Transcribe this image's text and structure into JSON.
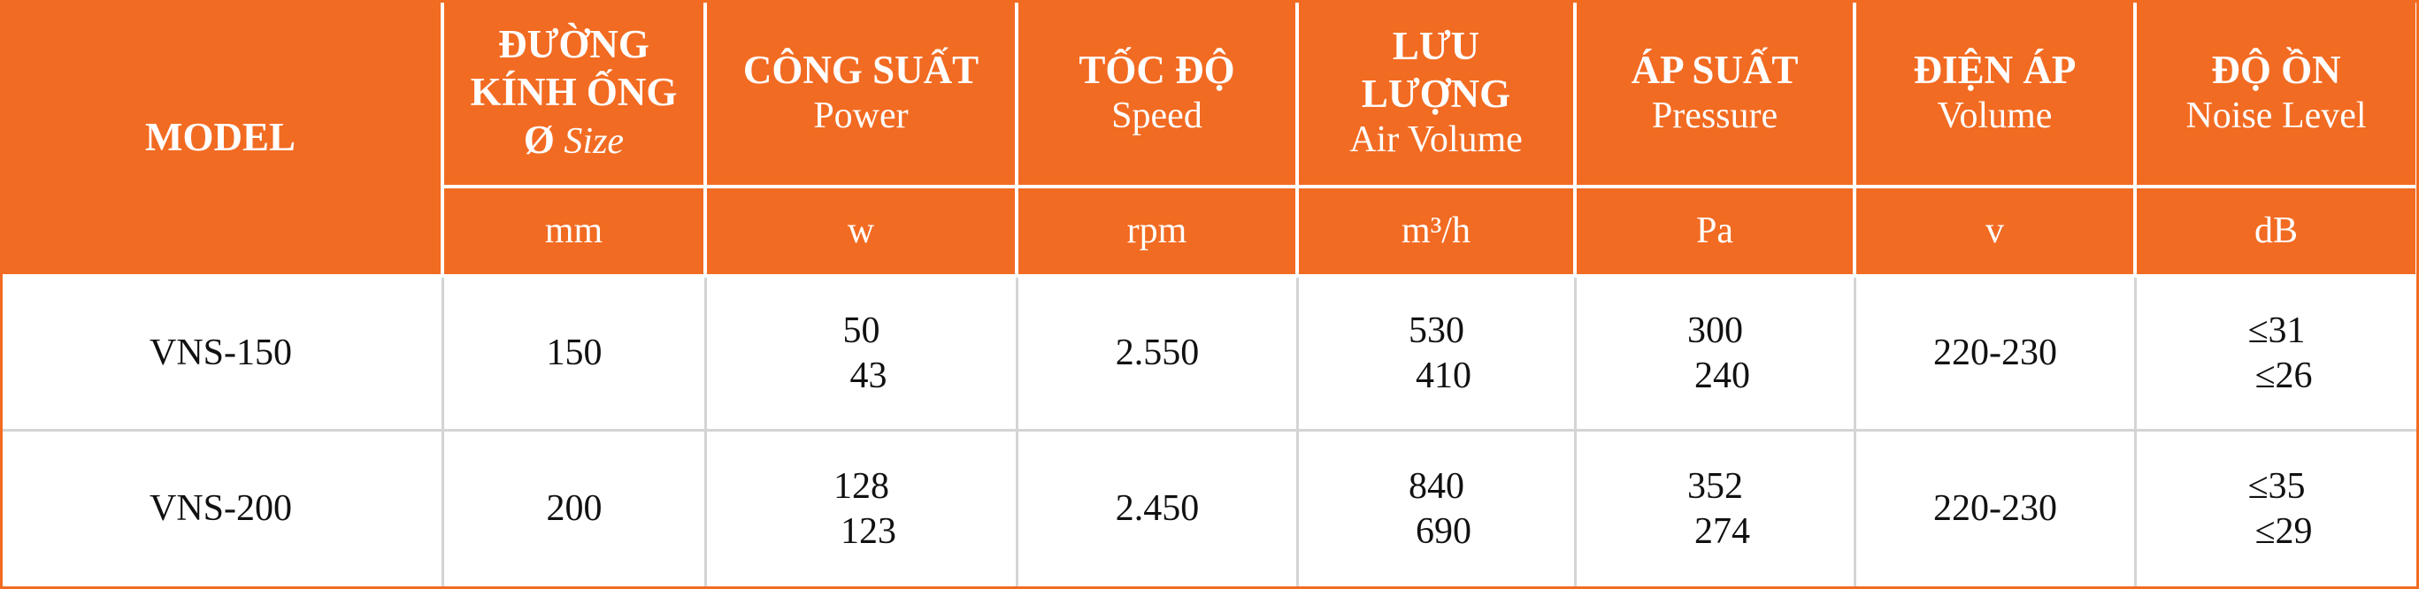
{
  "table": {
    "columns": [
      {
        "title": [
          "MODEL"
        ]
      },
      {
        "title": [
          "ĐƯỜNG",
          "KÍNH ỐNG"
        ],
        "symbol": "Ø",
        "subtitle": "Size",
        "unit": "mm"
      },
      {
        "title": [
          "CÔNG SUẤT"
        ],
        "subtitle": "Power",
        "unit": "w"
      },
      {
        "title": [
          "TỐC ĐỘ"
        ],
        "subtitle": "Speed",
        "unit": "rpm"
      },
      {
        "title": [
          "LƯU",
          "LƯỢNG"
        ],
        "subtitle": "Air Volume",
        "unit": "m³/h"
      },
      {
        "title": [
          "ÁP SUẤT"
        ],
        "subtitle": "Pressure",
        "unit": "Pa"
      },
      {
        "title": [
          "ĐIỆN ÁP"
        ],
        "subtitle": "Volume",
        "unit": "v"
      },
      {
        "title": [
          "ĐỘ ỒN"
        ],
        "subtitle": "Noise Level",
        "unit": "dB"
      }
    ],
    "rows": [
      [
        "VNS-150",
        "150",
        [
          "50",
          "43"
        ],
        "2.550",
        [
          "530",
          "410"
        ],
        [
          "300",
          "240"
        ],
        "220-230",
        [
          "≤31",
          "≤26"
        ]
      ],
      [
        "VNS-200",
        "200",
        [
          "128",
          "123"
        ],
        "2.450",
        [
          "840",
          "690"
        ],
        [
          "352",
          "274"
        ],
        "220-230",
        [
          "≤35",
          "≤29"
        ]
      ]
    ]
  }
}
